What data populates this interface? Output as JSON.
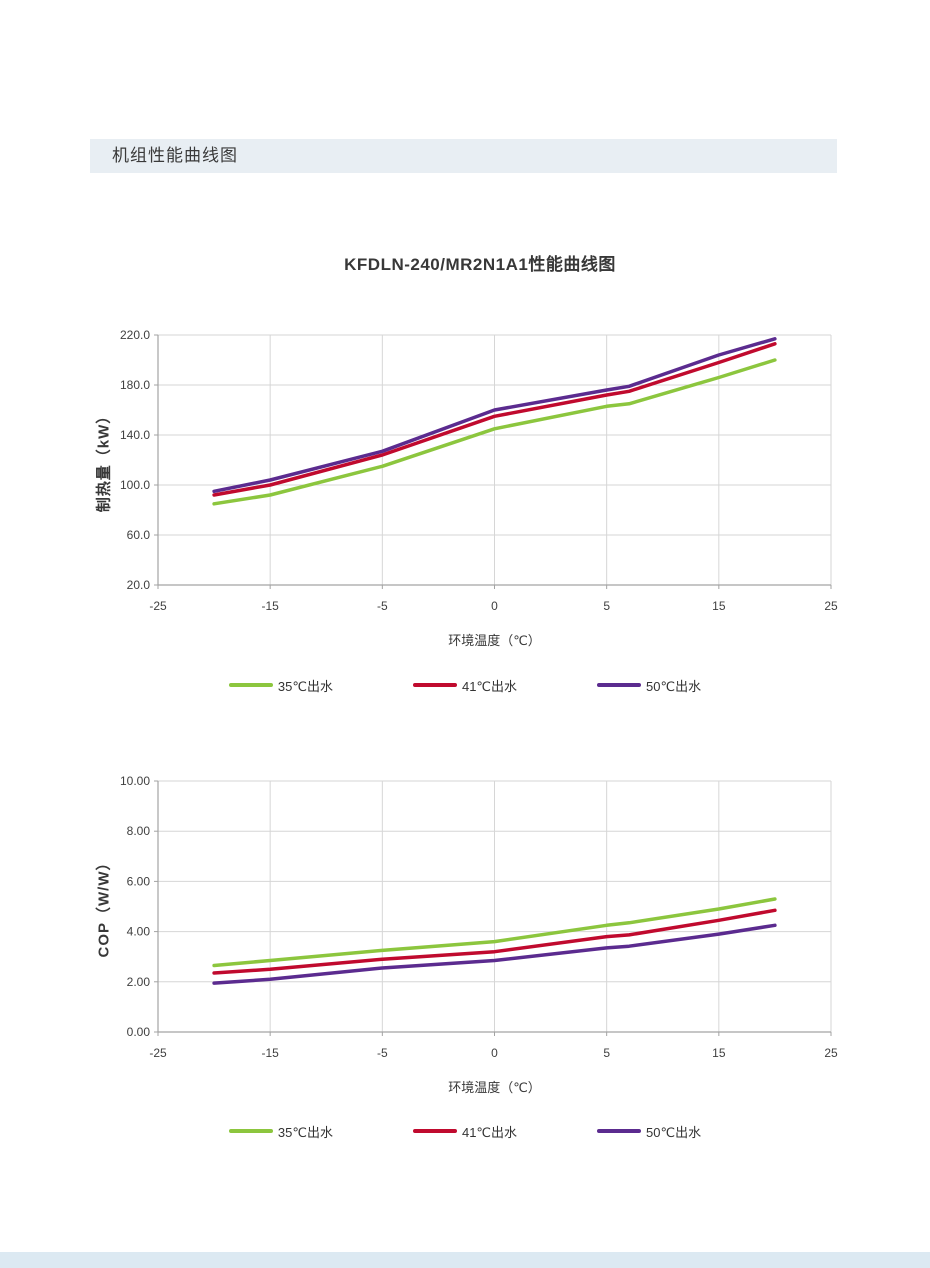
{
  "page": {
    "section_header": "机组性能曲线图"
  },
  "legend_items": [
    {
      "label": "35℃出水",
      "color": "#8cc63e"
    },
    {
      "label": "41℃出水",
      "color": "#c00a2e"
    },
    {
      "label": "50℃出水",
      "color": "#5b2b8f"
    }
  ],
  "chart_data": [
    {
      "type": "line",
      "title": "KFDLN-240/MR2N1A1性能曲线图",
      "xlabel": "环境温度（℃）",
      "ylabel": "制热量（kW）",
      "x_tick_labels": [
        "-25",
        "-15",
        "-5",
        "0",
        "5",
        "15",
        "25"
      ],
      "y_tick_labels": [
        "220.0",
        "180.0",
        "140.0",
        "100.0",
        "60.0",
        "20.0"
      ],
      "ylim": [
        20,
        220
      ],
      "grid": true,
      "legend_position": "bottom",
      "x": [
        -20,
        -15,
        -5,
        0,
        5,
        7,
        15,
        20
      ],
      "x_pos": [
        0.5,
        1,
        2,
        3,
        4,
        4.2,
        5,
        5.5
      ],
      "series": [
        {
          "name": "35℃出水",
          "color": "#8cc63e",
          "values": [
            85,
            92,
            115,
            145,
            163,
            165,
            186,
            200
          ]
        },
        {
          "name": "41℃出水",
          "color": "#c00a2e",
          "values": [
            92,
            100,
            124,
            155,
            172,
            175,
            198,
            213
          ]
        },
        {
          "name": "50℃出水",
          "color": "#5b2b8f",
          "values": [
            95,
            104,
            127,
            160,
            176,
            179,
            204,
            217
          ]
        }
      ]
    },
    {
      "type": "line",
      "title": "",
      "xlabel": "环境温度（℃）",
      "ylabel": "COP（W/W）",
      "x_tick_labels": [
        "-25",
        "-15",
        "-5",
        "0",
        "5",
        "15",
        "25"
      ],
      "y_tick_labels": [
        "10.00",
        "8.00",
        "6.00",
        "4.00",
        "2.00",
        "0.00"
      ],
      "ylim": [
        0,
        10
      ],
      "grid": true,
      "legend_position": "bottom",
      "x": [
        -20,
        -15,
        -5,
        0,
        5,
        7,
        15,
        20
      ],
      "x_pos": [
        0.5,
        1,
        2,
        3,
        4,
        4.2,
        5,
        5.5
      ],
      "series": [
        {
          "name": "35℃出水",
          "color": "#8cc63e",
          "values": [
            2.65,
            2.85,
            3.25,
            3.6,
            4.25,
            4.35,
            4.9,
            5.3
          ]
        },
        {
          "name": "41℃出水",
          "color": "#c00a2e",
          "values": [
            2.35,
            2.5,
            2.9,
            3.2,
            3.8,
            3.87,
            4.45,
            4.85
          ]
        },
        {
          "name": "50℃出水",
          "color": "#5b2b8f",
          "values": [
            1.95,
            2.1,
            2.55,
            2.85,
            3.35,
            3.42,
            3.9,
            4.25
          ]
        }
      ]
    }
  ]
}
